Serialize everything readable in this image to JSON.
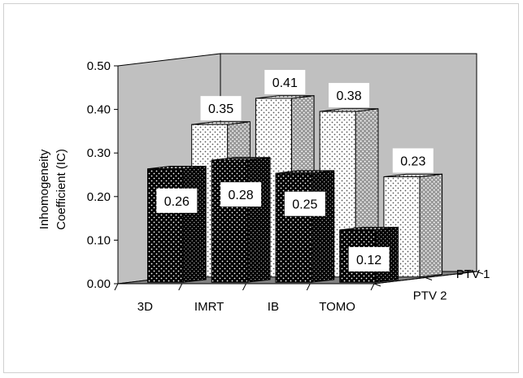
{
  "chart_data": {
    "type": "bar",
    "style": "3d-clustered-depth",
    "categories": [
      "3D",
      "IMRT",
      "IB",
      "TOMO"
    ],
    "series": [
      {
        "name": "PTV 1",
        "values": [
          0.35,
          0.41,
          0.38,
          0.23
        ],
        "fill": "light-dotted",
        "color": "#ffffff"
      },
      {
        "name": "PTV 2",
        "values": [
          0.26,
          0.28,
          0.25,
          0.12
        ],
        "fill": "dark-dotted",
        "color": "#000000"
      }
    ],
    "ylabel_line1": "Inhomogeneity",
    "ylabel_line2": "Coefficient (IC)",
    "ylim": [
      0,
      0.5
    ],
    "yticks": [
      "0.00",
      "0.10",
      "0.20",
      "0.30",
      "0.40",
      "0.50"
    ],
    "data_labels": true,
    "gridlines": false,
    "wall_color": "#c0c0c0",
    "floor_color": "#808080"
  }
}
